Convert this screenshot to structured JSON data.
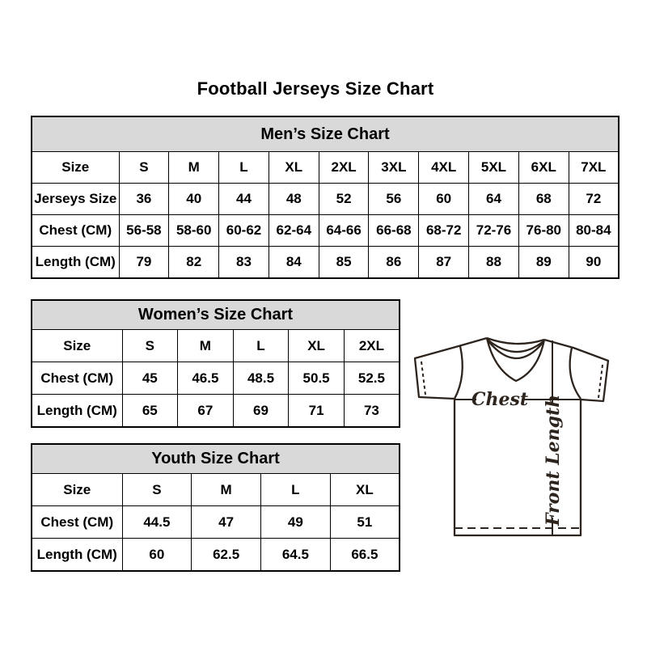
{
  "page": {
    "title": "Football Jerseys Size Chart"
  },
  "tables": {
    "men": {
      "title": "Men’s Size Chart",
      "rows": [
        [
          "Size",
          "S",
          "M",
          "L",
          "XL",
          "2XL",
          "3XL",
          "4XL",
          "5XL",
          "6XL",
          "7XL"
        ],
        [
          "Jerseys Size",
          "36",
          "40",
          "44",
          "48",
          "52",
          "56",
          "60",
          "64",
          "68",
          "72"
        ],
        [
          "Chest (CM)",
          "56-58",
          "58-60",
          "60-62",
          "62-64",
          "64-66",
          "66-68",
          "68-72",
          "72-76",
          "76-80",
          "80-84"
        ],
        [
          "Length (CM)",
          "79",
          "82",
          "83",
          "84",
          "85",
          "86",
          "87",
          "88",
          "89",
          "90"
        ]
      ]
    },
    "women": {
      "title": "Women’s Size Chart",
      "rows": [
        [
          "Size",
          "S",
          "M",
          "L",
          "XL",
          "2XL"
        ],
        [
          "Chest (CM)",
          "45",
          "46.5",
          "48.5",
          "50.5",
          "52.5"
        ],
        [
          "Length (CM)",
          "65",
          "67",
          "69",
          "71",
          "73"
        ]
      ]
    },
    "youth": {
      "title": "Youth Size Chart",
      "rows": [
        [
          "Size",
          "S",
          "M",
          "L",
          "XL"
        ],
        [
          "Chest (CM)",
          "44.5",
          "47",
          "49",
          "51"
        ],
        [
          "Length (CM)",
          "60",
          "62.5",
          "64.5",
          "66.5"
        ]
      ]
    }
  },
  "diagram": {
    "chest_label": "Chest",
    "front_length_label": "Front Length"
  },
  "colors": {
    "table_header_bg": "#d9d9d9",
    "table_border": "#000000",
    "diagram_stroke": "#2e241e",
    "background": "#ffffff"
  }
}
